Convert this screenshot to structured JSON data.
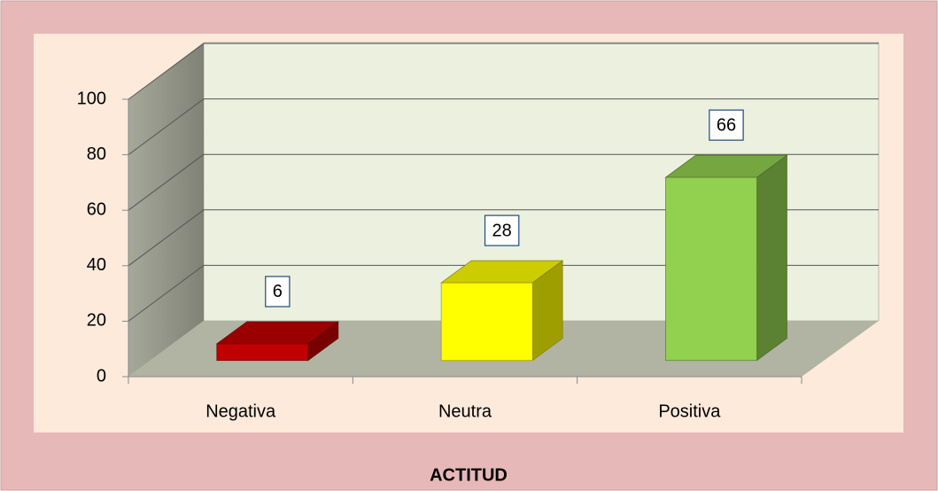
{
  "chart_data": {
    "type": "bar3d",
    "title": "ACTITUD",
    "categories": [
      "Negativa",
      "Neutra",
      "Positiva"
    ],
    "values": [
      6,
      28,
      66
    ],
    "colors": [
      "#c00000",
      "#ffff00",
      "#92d050"
    ],
    "ylim": [
      0,
      100
    ],
    "yticks": [
      0,
      20,
      40,
      60,
      80,
      100
    ],
    "grid": true
  }
}
